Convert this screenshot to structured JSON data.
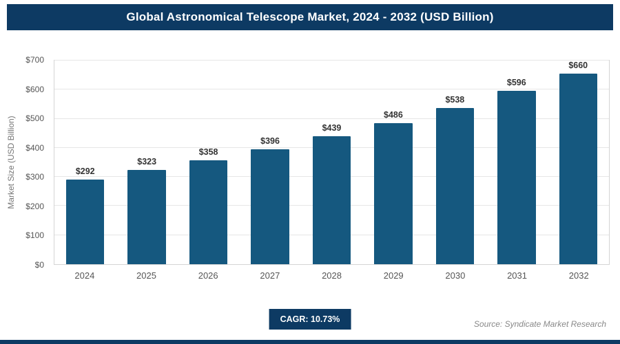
{
  "header": {
    "title": "Global Astronomical Telescope Market, 2024 - 2032 (USD Billion)"
  },
  "chart_data": {
    "type": "bar",
    "title": "Global Astronomical Telescope Market, 2024 - 2032 (USD Billion)",
    "categories": [
      "2024",
      "2025",
      "2026",
      "2027",
      "2028",
      "2029",
      "2030",
      "2031",
      "2032"
    ],
    "values": [
      292,
      323,
      358,
      396,
      439,
      486,
      538,
      596,
      660
    ],
    "xlabel": "",
    "ylabel": "Market Size (USD Billion)",
    "ylim": [
      0,
      700
    ],
    "ytick_step": 100,
    "ytick_prefix": "$",
    "value_label_prefix": "$",
    "grid": true,
    "legend_position": "none"
  },
  "footer": {
    "cagr_label": "CAGR: 10.73%",
    "source": "Source: Syndicate Market Research"
  },
  "colors": {
    "navy": "#0d3a63",
    "bar": "#15587f",
    "grid": "#e6e6e6",
    "axis_text": "#555555"
  }
}
